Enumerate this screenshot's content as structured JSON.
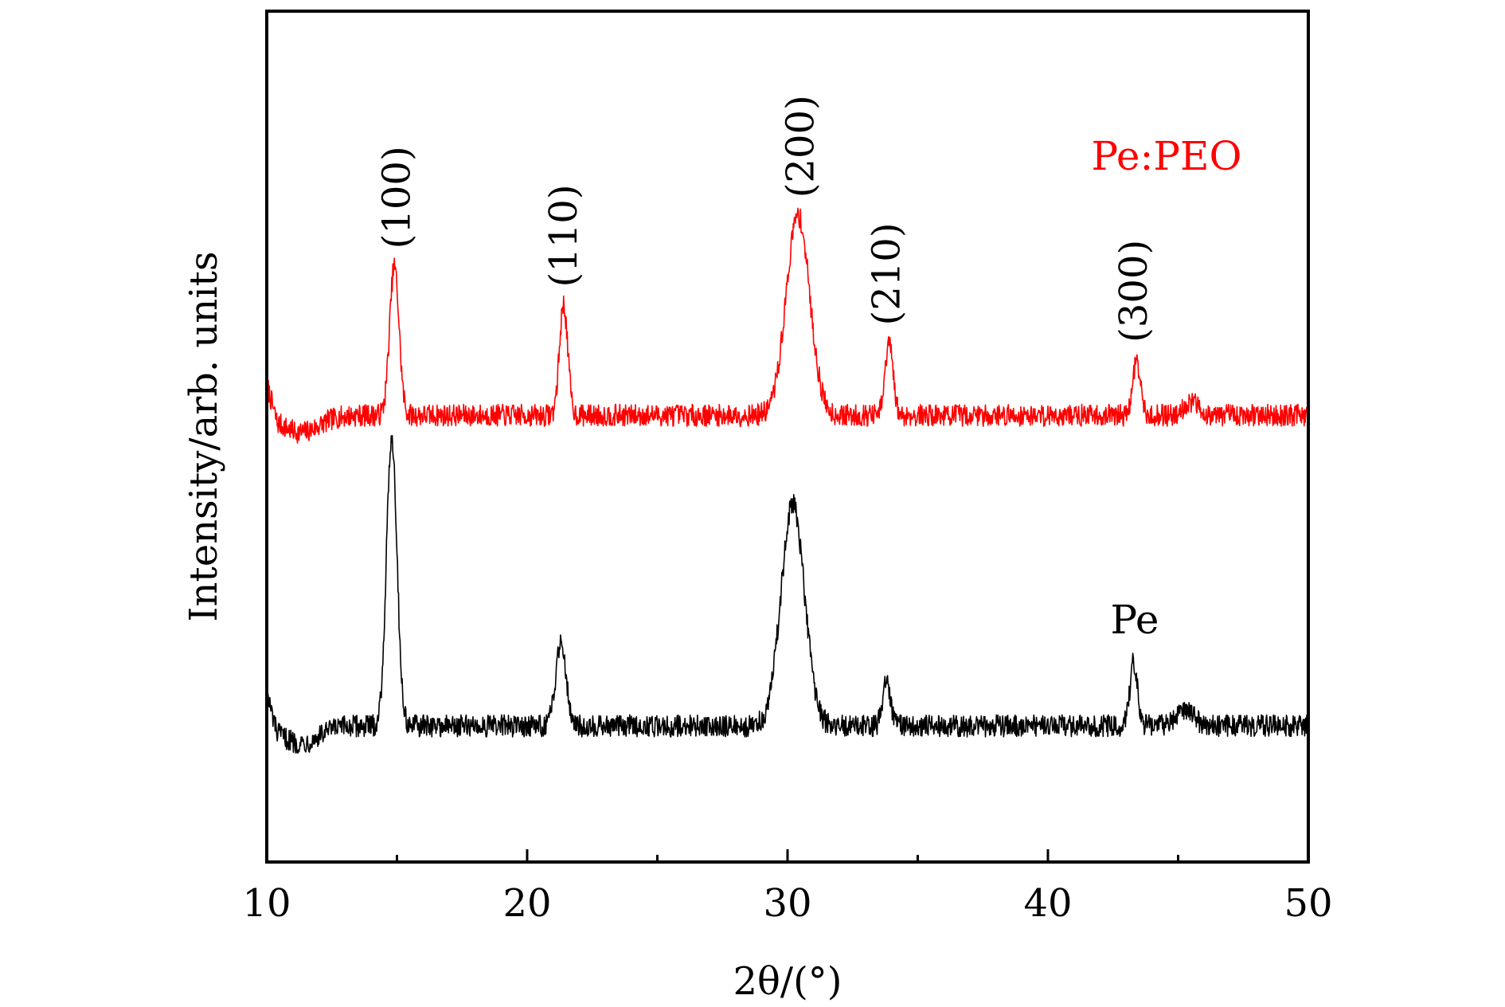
{
  "chart_data": {
    "type": "line",
    "title": "",
    "xlabel": "2θ/(°)",
    "ylabel": "Intensity/arb. units",
    "xlim": [
      10,
      50
    ],
    "ylim": [
      0,
      100
    ],
    "xticks": [
      10,
      20,
      30,
      40,
      50
    ],
    "xtick_labels": [
      "10",
      "20",
      "30",
      "40",
      "50"
    ],
    "yticks_shown": false,
    "grid": false,
    "legend": "none (series labeled directly on plot)",
    "series": [
      {
        "name": "Pe:PEO",
        "color": "#ff0000",
        "baseline": 52.5,
        "peaks": [
          {
            "x": 14.9,
            "height": 17.5,
            "width": 0.18
          },
          {
            "x": 21.4,
            "height": 13.0,
            "width": 0.16
          },
          {
            "x": 30.4,
            "height": 23.5,
            "width": 0.45
          },
          {
            "x": 33.9,
            "height": 8.5,
            "width": 0.15
          },
          {
            "x": 43.4,
            "height": 6.5,
            "width": 0.14
          },
          {
            "x": 45.5,
            "height": 1.5,
            "width": 0.3
          }
        ]
      },
      {
        "name": "Pe",
        "color": "#000000",
        "baseline": 16.0,
        "peaks": [
          {
            "x": 14.8,
            "height": 34.0,
            "width": 0.2
          },
          {
            "x": 21.3,
            "height": 10.0,
            "width": 0.2
          },
          {
            "x": 30.2,
            "height": 26.0,
            "width": 0.45
          },
          {
            "x": 33.8,
            "height": 5.0,
            "width": 0.15
          },
          {
            "x": 43.3,
            "height": 7.5,
            "width": 0.15
          },
          {
            "x": 45.3,
            "height": 2.0,
            "width": 0.3
          }
        ]
      }
    ],
    "annotations": [
      {
        "text": "(100)",
        "x": 15.0,
        "series": "Pe:PEO"
      },
      {
        "text": "(110)",
        "x": 21.4,
        "series": "Pe:PEO"
      },
      {
        "text": "(200)",
        "x": 30.5,
        "series": "Pe:PEO"
      },
      {
        "text": "(210)",
        "x": 33.8,
        "series": "Pe:PEO"
      },
      {
        "text": "(300)",
        "x": 43.3,
        "series": "Pe:PEO"
      }
    ],
    "series_labels": [
      {
        "text": "Pe:PEO",
        "color": "#ff0000"
      },
      {
        "text": "Pe",
        "color": "#000000"
      }
    ]
  }
}
